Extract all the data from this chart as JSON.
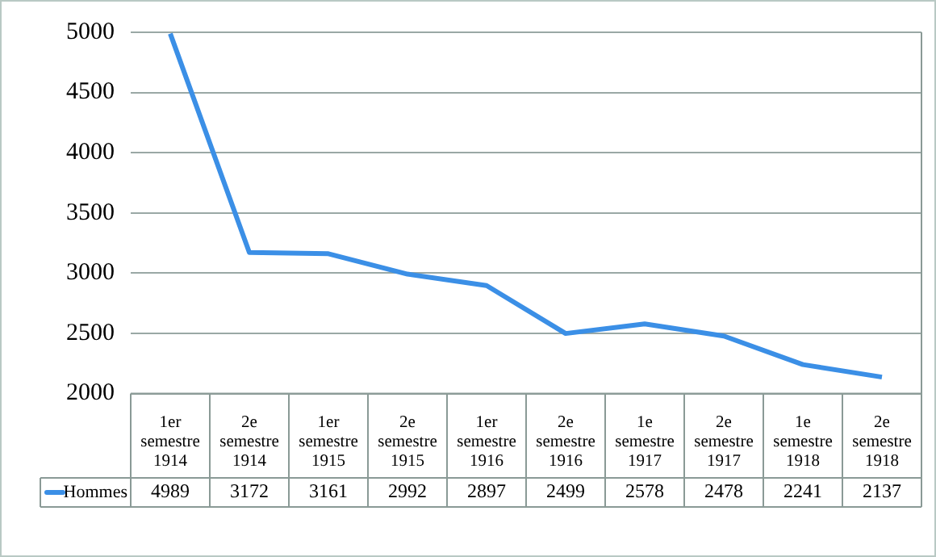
{
  "chart_data": {
    "type": "line",
    "categories": [
      "1er semestre 1914",
      "2e semestre 1914",
      "1er semestre 1915",
      "2e semestre 1915",
      "1er semestre 1916",
      "2e semestre 1916",
      "1e semestre 1917",
      "2e semestre 1917",
      "1e semestre 1918",
      "2e semestre 1918"
    ],
    "series": [
      {
        "name": "Hommes",
        "color": "#3b8fe6",
        "values": [
          4989,
          3172,
          3161,
          2992,
          2897,
          2499,
          2578,
          2478,
          2241,
          2137
        ]
      }
    ],
    "ylim": [
      2000,
      5000
    ],
    "yticks": [
      2000,
      2500,
      3000,
      3500,
      4000,
      4500,
      5000
    ],
    "grid": "y",
    "legend": "bottom left",
    "data_labels": true,
    "marker": "none",
    "line_style": "solid"
  }
}
